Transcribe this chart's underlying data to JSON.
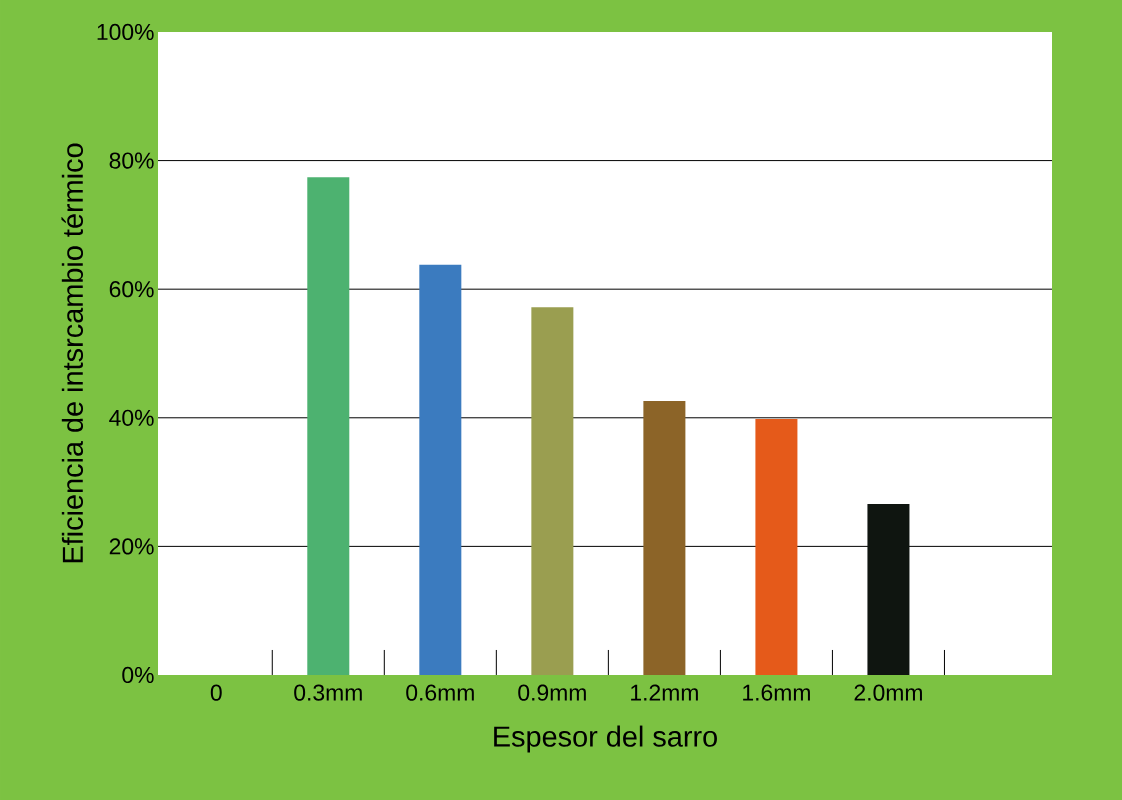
{
  "chart_data": {
    "type": "bar",
    "xlabel": "Espesor del sarro",
    "ylabel": "Eficiencia de intsrcambio térmico",
    "categories": [
      "0",
      "0.3mm",
      "0.6mm",
      "0.9mm",
      "1.2mm",
      "1.6mm",
      "2.0mm"
    ],
    "values": [
      0,
      77.4,
      63.8,
      57.2,
      42.6,
      39.8,
      26.6
    ],
    "colors": [
      "#4db270",
      "#4db270",
      "#3b7bbf",
      "#9a9e50",
      "#8c6428",
      "#e55a1a",
      "#0f1510"
    ],
    "ylim": [
      0,
      100
    ],
    "yticks": [
      {
        "value": 0,
        "label": "0%"
      },
      {
        "value": 20,
        "label": "20%"
      },
      {
        "value": 40,
        "label": "40%"
      },
      {
        "value": 60,
        "label": "60%"
      },
      {
        "value": 80,
        "label": "80%"
      },
      {
        "value": 100,
        "label": "100%"
      }
    ],
    "grid": "y"
  }
}
